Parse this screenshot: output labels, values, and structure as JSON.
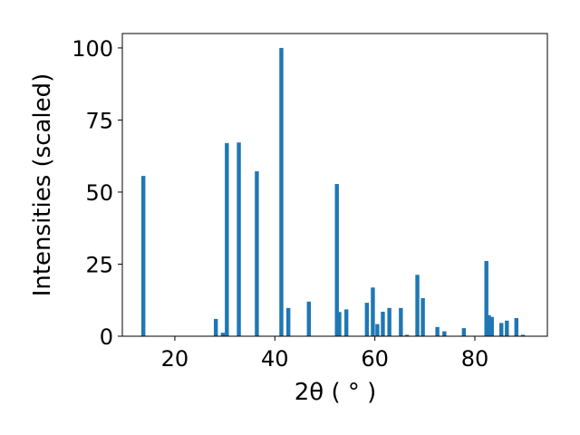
{
  "chart_data": {
    "type": "bar",
    "title": "",
    "xlabel": "2θ ( ° )",
    "ylabel": "Intensities (scaled)",
    "xlim": [
      9.5,
      94.5
    ],
    "ylim": [
      0,
      105
    ],
    "xticks": [
      20,
      40,
      60,
      80
    ],
    "yticks": [
      0,
      25,
      50,
      75,
      100
    ],
    "xtick_labels": [
      "20",
      "40",
      "60",
      "80"
    ],
    "ytick_labels": [
      "0",
      "25",
      "50",
      "75",
      "100"
    ],
    "bar_width": 0.8,
    "grid": false,
    "bar_color": "#1f77b4",
    "x": [
      13.7,
      28.2,
      29.6,
      30.4,
      32.8,
      36.4,
      41.3,
      42.7,
      46.8,
      52.4,
      52.9,
      54.3,
      58.4,
      59.6,
      60.5,
      61.6,
      62.9,
      65.2,
      66.4,
      68.5,
      69.6,
      72.5,
      73.9,
      77.8,
      82.3,
      82.8,
      83.4,
      85.3,
      86.4,
      88.3,
      89.6
    ],
    "values": [
      55.6,
      6.0,
      1.2,
      67.0,
      67.2,
      57.2,
      100.0,
      9.8,
      12.0,
      52.8,
      8.4,
      9.3,
      11.6,
      16.9,
      4.2,
      8.5,
      9.8,
      9.8,
      0.5,
      21.3,
      13.2,
      3.2,
      1.7,
      2.8,
      26.1,
      7.3,
      6.7,
      4.6,
      5.4,
      6.3,
      0.5
    ]
  }
}
